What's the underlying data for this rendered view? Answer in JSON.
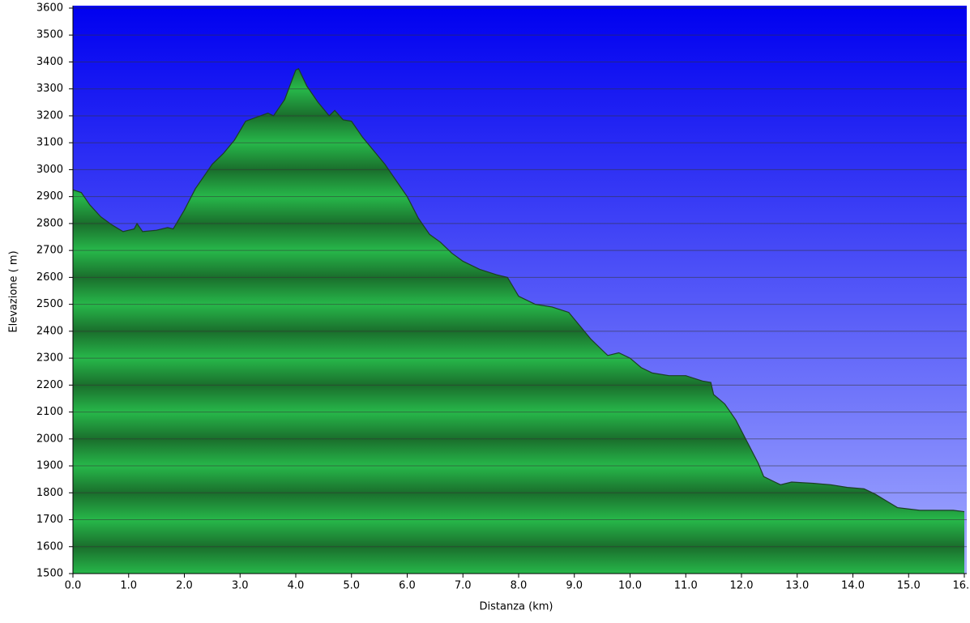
{
  "chart_data": {
    "type": "area",
    "xlabel": "Distanza   (km)",
    "ylabel": "Elevazione ( m)",
    "x": [
      0.0,
      0.15,
      0.3,
      0.5,
      0.7,
      0.9,
      1.0,
      1.1,
      1.15,
      1.25,
      1.5,
      1.7,
      1.8,
      2.0,
      2.2,
      2.5,
      2.7,
      2.9,
      3.1,
      3.3,
      3.5,
      3.6,
      3.8,
      4.0,
      4.05,
      4.2,
      4.4,
      4.6,
      4.7,
      4.85,
      5.0,
      5.2,
      5.4,
      5.6,
      5.8,
      6.0,
      6.2,
      6.4,
      6.6,
      6.8,
      7.0,
      7.3,
      7.6,
      7.8,
      8.0,
      8.3,
      8.6,
      8.9,
      9.1,
      9.3,
      9.5,
      9.6,
      9.8,
      10.0,
      10.2,
      10.4,
      10.7,
      11.0,
      11.3,
      11.45,
      11.5,
      11.7,
      11.9,
      12.1,
      12.3,
      12.4,
      12.6,
      12.7,
      12.9,
      13.3,
      13.6,
      13.9,
      14.2,
      14.4,
      14.6,
      14.8,
      15.0,
      15.2,
      15.5,
      15.8,
      16.0
    ],
    "values": [
      2925,
      2915,
      2870,
      2825,
      2795,
      2770,
      2775,
      2780,
      2800,
      2770,
      2775,
      2785,
      2780,
      2850,
      2930,
      3020,
      3060,
      3110,
      3180,
      3195,
      3210,
      3200,
      3260,
      3370,
      3375,
      3310,
      3250,
      3200,
      3220,
      3185,
      3180,
      3120,
      3070,
      3020,
      2960,
      2900,
      2820,
      2760,
      2730,
      2690,
      2660,
      2630,
      2610,
      2600,
      2530,
      2500,
      2490,
      2470,
      2420,
      2370,
      2330,
      2310,
      2320,
      2300,
      2265,
      2245,
      2235,
      2235,
      2215,
      2210,
      2165,
      2130,
      2070,
      1990,
      1910,
      1860,
      1840,
      1830,
      1840,
      1835,
      1830,
      1820,
      1815,
      1795,
      1770,
      1745,
      1740,
      1735,
      1735,
      1735,
      1730
    ],
    "color": "#22a844",
    "xlim": [
      0,
      16
    ],
    "xticks": [
      {
        "value": 0,
        "label": "0.0"
      },
      {
        "value": 1,
        "label": "1.0"
      },
      {
        "value": 2,
        "label": "2.0"
      },
      {
        "value": 3,
        "label": "3.0"
      },
      {
        "value": 4,
        "label": "4.0"
      },
      {
        "value": 5,
        "label": "5.0"
      },
      {
        "value": 6,
        "label": "6.0"
      },
      {
        "value": 7,
        "label": "7.0"
      },
      {
        "value": 8,
        "label": "8.0"
      },
      {
        "value": 9,
        "label": "9.0"
      },
      {
        "value": 10,
        "label": "10.0"
      },
      {
        "value": 11,
        "label": "11.0"
      },
      {
        "value": 12,
        "label": "12.0"
      },
      {
        "value": 13,
        "label": "13.0"
      },
      {
        "value": 14,
        "label": "14.0"
      },
      {
        "value": 15,
        "label": "15.0"
      },
      {
        "value": 16,
        "label": "16.0"
      }
    ],
    "ylim": [
      1500,
      3600
    ],
    "yticks": [
      1500,
      1600,
      1700,
      1800,
      1900,
      2000,
      2100,
      2200,
      2300,
      2400,
      2500,
      2600,
      2700,
      2800,
      2900,
      3000,
      3100,
      3200,
      3300,
      3400,
      3500,
      3600
    ],
    "grid": true
  }
}
